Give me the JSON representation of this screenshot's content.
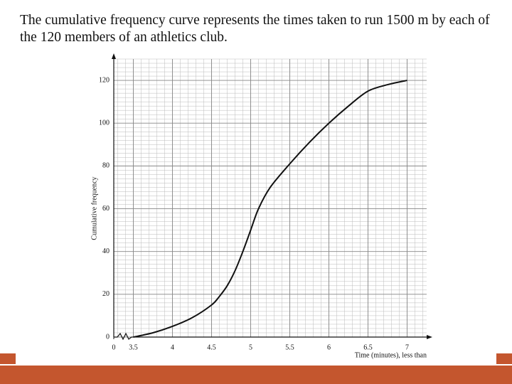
{
  "chart_data": {
    "type": "line",
    "title": "The cumulative frequency curve represents the times taken to run 1500 m by each of the 120 members of an athletics club.",
    "x_label": "Time (minutes), less than",
    "y_label": "Cumulative frequency",
    "x": [
      3.5,
      3.75,
      4,
      4.25,
      4.5,
      4.6,
      4.7,
      4.8,
      4.9,
      5,
      5.1,
      5.25,
      5.5,
      5.75,
      6,
      6.25,
      6.5,
      6.75,
      7
    ],
    "series": [
      {
        "color": "#111111",
        "values": [
          0,
          2,
          5,
          9,
          15,
          19,
          24,
          31,
          40,
          50,
          60,
          70,
          81,
          91,
          100,
          108,
          115,
          118,
          120
        ]
      }
    ],
    "xlim": [
      0,
      7.25
    ],
    "axis_break": [
      0,
      3.25
    ],
    "xticks": [
      0,
      3.5,
      4,
      4.5,
      5,
      5.5,
      6,
      6.5,
      7
    ],
    "ylim": [
      0,
      130
    ],
    "yticks": [
      0,
      20,
      40,
      60,
      80,
      100,
      120
    ],
    "grid": true
  }
}
